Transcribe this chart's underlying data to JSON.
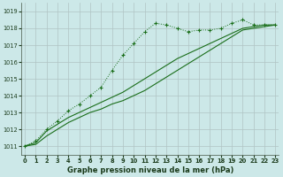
{
  "xlabel": "Graphe pression niveau de la mer (hPa)",
  "background_color": "#cce8e8",
  "grid_color": "#b0c4c4",
  "line_color": "#1a6e1a",
  "ylim": [
    1010.5,
    1019.5
  ],
  "xlim": [
    -0.3,
    23.3
  ],
  "yticks": [
    1011,
    1012,
    1013,
    1014,
    1015,
    1016,
    1017,
    1018,
    1019
  ],
  "xticks": [
    0,
    1,
    2,
    3,
    4,
    5,
    6,
    7,
    8,
    9,
    10,
    11,
    12,
    13,
    14,
    15,
    16,
    17,
    18,
    19,
    20,
    21,
    22,
    23
  ],
  "series": [
    {
      "x": [
        0,
        1,
        2,
        3,
        4,
        5,
        6,
        7,
        8,
        9,
        10,
        11,
        12,
        13,
        14,
        15,
        16,
        17,
        18,
        19,
        20,
        21,
        22,
        23
      ],
      "y": [
        1011.0,
        1011.3,
        1012.0,
        1012.5,
        1013.1,
        1013.5,
        1014.0,
        1014.5,
        1015.5,
        1016.4,
        1017.1,
        1017.8,
        1018.3,
        1018.2,
        1018.0,
        1017.8,
        1017.9,
        1017.9,
        1018.0,
        1018.3,
        1018.5,
        1018.2,
        1018.2,
        1018.2
      ],
      "linestyle": "dotted",
      "marker": "+"
    },
    {
      "x": [
        0,
        1,
        2,
        3,
        4,
        5,
        6,
        7,
        8,
        9,
        10,
        11,
        12,
        13,
        14,
        15,
        16,
        17,
        18,
        19,
        20,
        21,
        22,
        23
      ],
      "y": [
        1011.0,
        1011.2,
        1011.9,
        1012.3,
        1012.7,
        1013.0,
        1013.3,
        1013.6,
        1013.9,
        1014.2,
        1014.6,
        1015.0,
        1015.4,
        1015.8,
        1016.2,
        1016.5,
        1016.8,
        1017.1,
        1017.4,
        1017.7,
        1018.0,
        1018.1,
        1018.2,
        1018.2
      ],
      "linestyle": "solid",
      "marker": null
    },
    {
      "x": [
        0,
        1,
        2,
        3,
        4,
        5,
        6,
        7,
        8,
        9,
        10,
        11,
        12,
        13,
        14,
        15,
        16,
        17,
        18,
        19,
        20,
        21,
        22,
        23
      ],
      "y": [
        1011.0,
        1011.1,
        1011.6,
        1012.0,
        1012.4,
        1012.7,
        1013.0,
        1013.2,
        1013.5,
        1013.7,
        1014.0,
        1014.3,
        1014.7,
        1015.1,
        1015.5,
        1015.9,
        1016.3,
        1016.7,
        1017.1,
        1017.5,
        1017.9,
        1018.0,
        1018.1,
        1018.2
      ],
      "linestyle": "solid",
      "marker": null
    }
  ]
}
